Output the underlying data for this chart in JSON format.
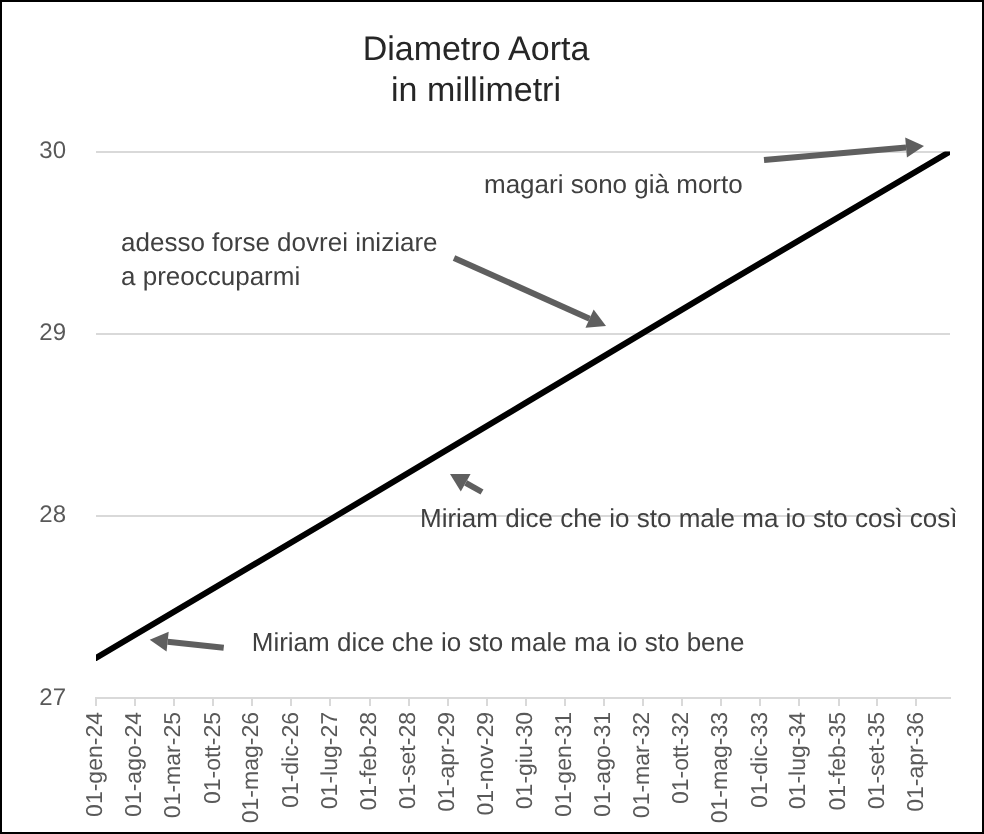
{
  "chart_data": {
    "type": "line",
    "title": "Diametro Aorta",
    "subtitle": "in millimetri",
    "x": [
      "2024-01-01",
      "2027-07-01",
      "2030-06-01",
      "2033-05-01",
      "2036-10-01"
    ],
    "series": [
      {
        "color": "#000000",
        "values": [
          27.22,
          27.98,
          28.62,
          29.26,
          30.0
        ]
      }
    ],
    "xlim": [
      "2024-01-01",
      "2036-10-01"
    ],
    "xticks": [
      {
        "value": "2024-01-01",
        "label": "01-gen-24"
      },
      {
        "value": "2024-08-01",
        "label": "01-ago-24"
      },
      {
        "value": "2025-03-01",
        "label": "01-mar-25"
      },
      {
        "value": "2025-10-01",
        "label": "01-ott-25"
      },
      {
        "value": "2026-05-01",
        "label": "01-mag-26"
      },
      {
        "value": "2026-12-01",
        "label": "01-dic-26"
      },
      {
        "value": "2027-07-01",
        "label": "01-lug-27"
      },
      {
        "value": "2028-02-01",
        "label": "01-feb-28"
      },
      {
        "value": "2028-09-01",
        "label": "01-set-28"
      },
      {
        "value": "2029-04-01",
        "label": "01-apr-29"
      },
      {
        "value": "2029-11-01",
        "label": "01-nov-29"
      },
      {
        "value": "2030-06-01",
        "label": "01-giu-30"
      },
      {
        "value": "2031-01-01",
        "label": "01-gen-31"
      },
      {
        "value": "2031-08-01",
        "label": "01-ago-31"
      },
      {
        "value": "2032-03-01",
        "label": "01-mar-32"
      },
      {
        "value": "2032-10-01",
        "label": "01-ott-32"
      },
      {
        "value": "2033-05-01",
        "label": "01-mag-33"
      },
      {
        "value": "2033-12-01",
        "label": "01-dic-33"
      },
      {
        "value": "2034-07-01",
        "label": "01-lug-34"
      },
      {
        "value": "2035-02-01",
        "label": "01-feb-35"
      },
      {
        "value": "2035-09-01",
        "label": "01-set-35"
      },
      {
        "value": "2036-04-01",
        "label": "01-apr-36"
      }
    ],
    "ylim": [
      27,
      30
    ],
    "yticks": [
      27,
      28,
      29,
      30
    ],
    "grid": "y",
    "marker": "none",
    "line_style": "solid",
    "annotations": [
      "magari sono già morto",
      "adesso forse dovrei iniziare\na preoccuparmi",
      "Miriam dice che io sto male ma io sto così così",
      {
        "text": "Miriam dice che io sto male ma io sto bene",
        "x": "2024-10-20",
        "y": 27.32
      }
    ]
  }
}
